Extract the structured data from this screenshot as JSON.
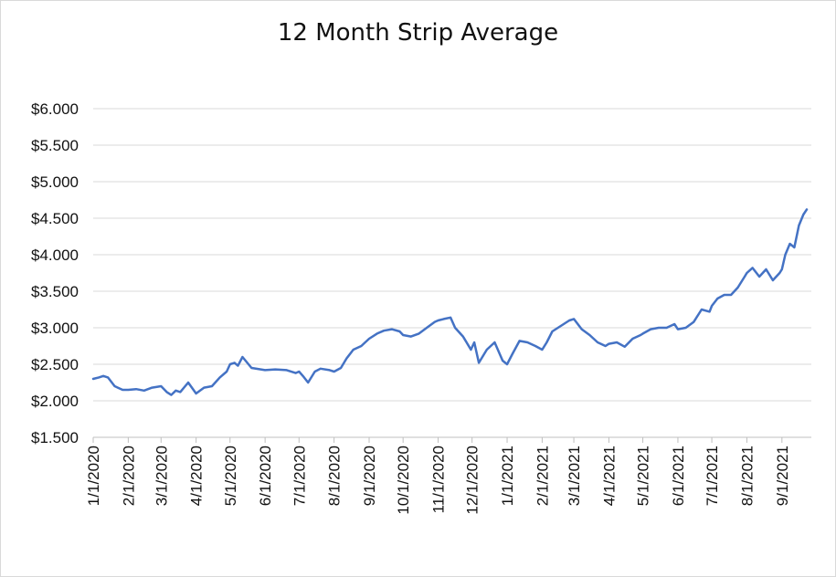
{
  "chart_data": {
    "type": "line",
    "title": "12 Month Strip Average",
    "xlabel": "",
    "ylabel": "",
    "ylim": [
      1.5,
      6.0
    ],
    "y_ticks": [
      "$1.500",
      "$2.000",
      "$2.500",
      "$3.000",
      "$3.500",
      "$4.000",
      "$4.500",
      "$5.000",
      "$5.500",
      "$6.000"
    ],
    "x_ticks": [
      "1/1/2020",
      "2/1/2020",
      "3/1/2020",
      "4/1/2020",
      "5/1/2020",
      "6/1/2020",
      "7/1/2020",
      "8/1/2020",
      "9/1/2020",
      "10/1/2020",
      "11/1/2020",
      "12/1/2020",
      "1/1/2021",
      "2/1/2021",
      "3/1/2021",
      "4/1/2021",
      "5/1/2021",
      "6/1/2021",
      "7/1/2021",
      "8/1/2021",
      "9/1/2021"
    ],
    "grid": true,
    "line_color": "#4472c4",
    "series": [
      {
        "x": [
          "2020-01-01",
          "2020-01-06",
          "2020-01-10",
          "2020-01-14",
          "2020-01-20",
          "2020-01-27",
          "2020-02-01",
          "2020-02-08",
          "2020-02-15",
          "2020-02-22",
          "2020-03-01",
          "2020-03-06",
          "2020-03-10",
          "2020-03-14",
          "2020-03-18",
          "2020-03-25",
          "2020-04-01",
          "2020-04-08",
          "2020-04-15",
          "2020-04-22",
          "2020-04-28",
          "2020-05-01",
          "2020-05-05",
          "2020-05-08",
          "2020-05-12",
          "2020-05-20",
          "2020-06-01",
          "2020-06-10",
          "2020-06-20",
          "2020-06-28",
          "2020-07-01",
          "2020-07-05",
          "2020-07-09",
          "2020-07-15",
          "2020-07-20",
          "2020-07-28",
          "2020-08-01",
          "2020-08-07",
          "2020-08-12",
          "2020-08-18",
          "2020-08-25",
          "2020-09-01",
          "2020-09-08",
          "2020-09-14",
          "2020-09-21",
          "2020-09-28",
          "2020-10-01",
          "2020-10-08",
          "2020-10-15",
          "2020-10-22",
          "2020-10-29",
          "2020-11-01",
          "2020-11-06",
          "2020-11-12",
          "2020-11-16",
          "2020-11-23",
          "2020-11-30",
          "2020-12-03",
          "2020-12-07",
          "2020-12-14",
          "2020-12-21",
          "2020-12-28",
          "2021-01-01",
          "2021-01-06",
          "2021-01-12",
          "2021-01-19",
          "2021-01-26",
          "2021-02-01",
          "2021-02-05",
          "2021-02-10",
          "2021-02-15",
          "2021-02-20",
          "2021-02-25",
          "2021-03-01",
          "2021-03-08",
          "2021-03-15",
          "2021-03-22",
          "2021-03-29",
          "2021-04-01",
          "2021-04-08",
          "2021-04-15",
          "2021-04-22",
          "2021-04-29",
          "2021-05-01",
          "2021-05-08",
          "2021-05-15",
          "2021-05-22",
          "2021-05-29",
          "2021-06-01",
          "2021-06-08",
          "2021-06-15",
          "2021-06-22",
          "2021-06-29",
          "2021-07-01",
          "2021-07-06",
          "2021-07-12",
          "2021-07-18",
          "2021-07-24",
          "2021-07-30",
          "2021-08-01",
          "2021-08-06",
          "2021-08-12",
          "2021-08-18",
          "2021-08-24",
          "2021-08-30",
          "2021-09-01",
          "2021-09-04",
          "2021-09-08",
          "2021-09-12",
          "2021-09-16",
          "2021-09-20",
          "2021-09-23"
        ],
        "y": [
          2.3,
          2.32,
          2.34,
          2.32,
          2.2,
          2.15,
          2.15,
          2.16,
          2.14,
          2.18,
          2.2,
          2.12,
          2.08,
          2.14,
          2.12,
          2.25,
          2.1,
          2.18,
          2.2,
          2.32,
          2.4,
          2.5,
          2.52,
          2.48,
          2.6,
          2.45,
          2.42,
          2.43,
          2.42,
          2.38,
          2.4,
          2.33,
          2.25,
          2.4,
          2.44,
          2.42,
          2.4,
          2.45,
          2.58,
          2.7,
          2.75,
          2.85,
          2.92,
          2.96,
          2.98,
          2.95,
          2.9,
          2.88,
          2.92,
          3.0,
          3.08,
          3.1,
          3.12,
          3.14,
          3.0,
          2.88,
          2.7,
          2.8,
          2.52,
          2.7,
          2.8,
          2.55,
          2.5,
          2.65,
          2.82,
          2.8,
          2.75,
          2.7,
          2.8,
          2.95,
          3.0,
          3.05,
          3.1,
          3.12,
          2.98,
          2.9,
          2.8,
          2.75,
          2.78,
          2.8,
          2.74,
          2.85,
          2.9,
          2.92,
          2.98,
          3.0,
          3.0,
          3.05,
          2.98,
          3.0,
          3.08,
          3.25,
          3.22,
          3.3,
          3.4,
          3.45,
          3.45,
          3.55,
          3.7,
          3.75,
          3.82,
          3.7,
          3.8,
          3.65,
          3.75,
          3.8,
          4.0,
          4.15,
          4.1,
          4.4,
          4.55,
          4.62
        ]
      }
    ]
  }
}
